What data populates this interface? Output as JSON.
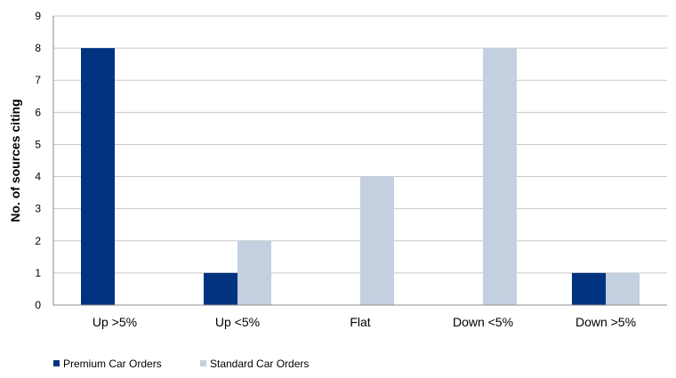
{
  "chart_data": {
    "type": "bar",
    "categories": [
      "Up >5%",
      "Up <5%",
      "Flat",
      "Down <5%",
      "Down >5%"
    ],
    "series": [
      {
        "name": "Premium Car Orders",
        "values": [
          8,
          1,
          0,
          0,
          1
        ],
        "color": "#003380"
      },
      {
        "name": "Standard Car Orders",
        "values": [
          0,
          2,
          4,
          8,
          1
        ],
        "color": "#c4cfe0"
      }
    ],
    "title": "",
    "xlabel": "",
    "ylabel": "No. of sources citing",
    "ylim": [
      0,
      9
    ],
    "yticks": [
      0,
      1,
      2,
      3,
      4,
      5,
      6,
      7,
      8,
      9
    ],
    "grid": true,
    "legend_position": "bottom-left"
  }
}
